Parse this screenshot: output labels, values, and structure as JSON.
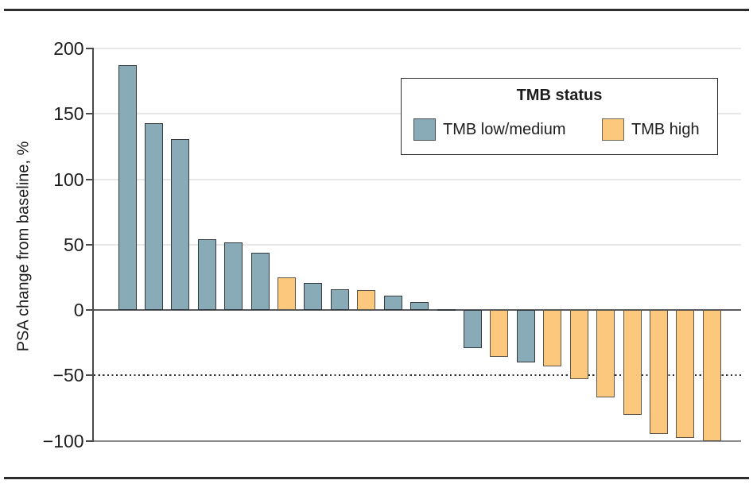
{
  "chart_data": {
    "type": "bar",
    "variant": "waterfall",
    "title": "",
    "xlabel": "",
    "ylabel": "PSA change from baseline, %",
    "ylim": [
      -100,
      200
    ],
    "grid": "horizontal-light",
    "yticks": [
      {
        "label": "200",
        "value": 200
      },
      {
        "label": "150",
        "value": 150
      },
      {
        "label": "100",
        "value": 100
      },
      {
        "label": "50",
        "value": 50
      },
      {
        "label": "0",
        "value": 0
      },
      {
        "label": "−50",
        "value": -50
      },
      {
        "label": "−100",
        "value": -100
      }
    ],
    "reference_lines": [
      {
        "value": -50,
        "style": "dotted"
      },
      {
        "value": -100,
        "style": "solid"
      }
    ],
    "legend": {
      "title": "TMB status",
      "position": "top-right",
      "entries": [
        {
          "label": "TMB low/medium",
          "key": "low",
          "color": "#89abb8"
        },
        {
          "label": "TMB high",
          "key": "high",
          "color": "#fbc87e"
        }
      ]
    },
    "bars": [
      {
        "value": 187,
        "group": "low"
      },
      {
        "value": 143,
        "group": "low"
      },
      {
        "value": 131,
        "group": "low"
      },
      {
        "value": 54,
        "group": "low"
      },
      {
        "value": 52,
        "group": "low"
      },
      {
        "value": 44,
        "group": "low"
      },
      {
        "value": 25,
        "group": "high"
      },
      {
        "value": 21,
        "group": "low"
      },
      {
        "value": 16,
        "group": "low"
      },
      {
        "value": 15,
        "group": "high"
      },
      {
        "value": 11,
        "group": "low"
      },
      {
        "value": 6,
        "group": "low"
      },
      {
        "value": 0,
        "group": "low"
      },
      {
        "value": -29,
        "group": "low"
      },
      {
        "value": -36,
        "group": "high"
      },
      {
        "value": -40,
        "group": "low"
      },
      {
        "value": -43,
        "group": "high"
      },
      {
        "value": -53,
        "group": "high"
      },
      {
        "value": -67,
        "group": "high"
      },
      {
        "value": -80,
        "group": "high"
      },
      {
        "value": -95,
        "group": "high"
      },
      {
        "value": -98,
        "group": "high"
      },
      {
        "value": -100,
        "group": "high"
      }
    ],
    "colors": {
      "low": "#89abb8",
      "high": "#fbc87e"
    }
  }
}
